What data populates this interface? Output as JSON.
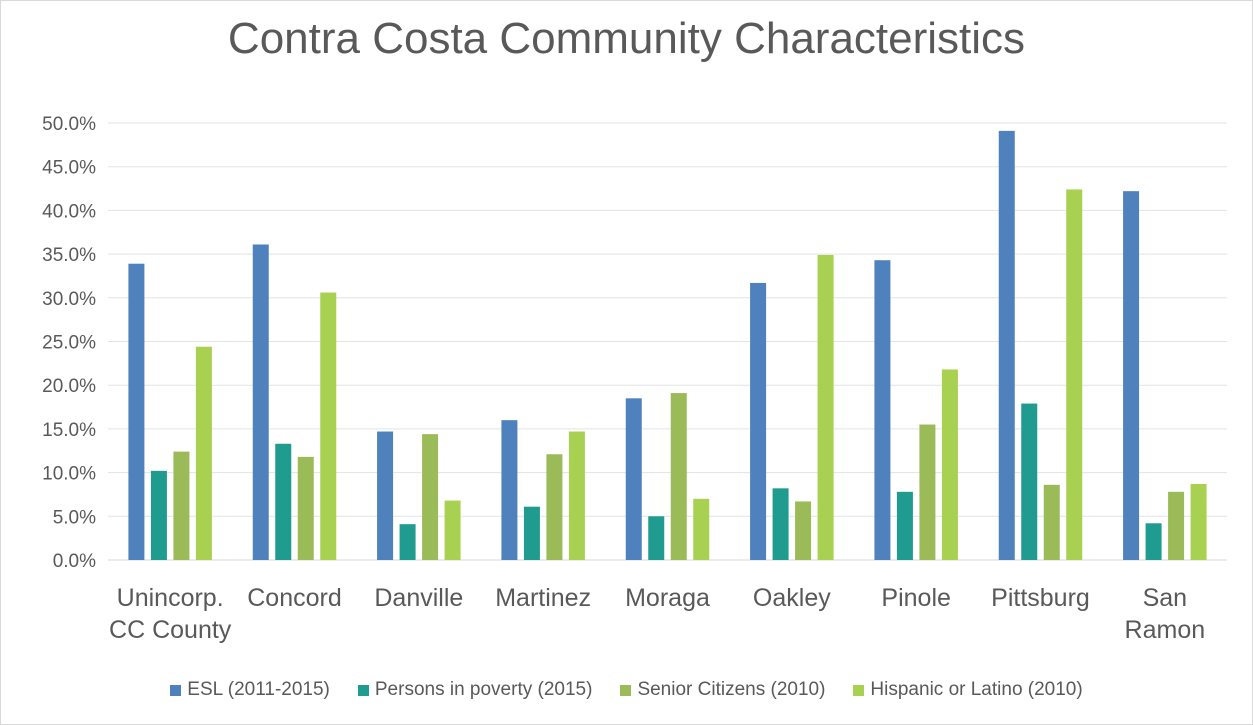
{
  "chart_data": {
    "type": "bar",
    "title": "Contra Costa Community Characteristics",
    "xlabel": "",
    "ylabel": "",
    "ylim": [
      0,
      50
    ],
    "ytick_step": 5,
    "ytick_format": "percent_1dp",
    "grid": true,
    "legend_position": "bottom",
    "categories": [
      [
        "Unincorp.",
        "CC County"
      ],
      [
        "Concord"
      ],
      [
        "Danville"
      ],
      [
        "Martinez"
      ],
      [
        "Moraga"
      ],
      [
        "Oakley"
      ],
      [
        "Pinole"
      ],
      [
        "Pittsburg"
      ],
      [
        "San",
        "Ramon"
      ]
    ],
    "series": [
      {
        "name": "ESL (2011-2015)",
        "color": "#4f81bd",
        "values": [
          33.9,
          36.1,
          14.7,
          16.0,
          18.5,
          31.7,
          34.3,
          49.1,
          42.2
        ]
      },
      {
        "name": "Persons in poverty (2015)",
        "color": "#1f9b8f",
        "values": [
          10.2,
          13.3,
          4.1,
          6.1,
          5.0,
          8.2,
          7.8,
          17.9,
          4.2
        ]
      },
      {
        "name": "Senior Citizens (2010)",
        "color": "#9bbb59",
        "values": [
          12.4,
          11.8,
          14.4,
          12.1,
          19.1,
          6.7,
          15.5,
          8.6,
          7.8
        ]
      },
      {
        "name": "Hispanic or Latino (2010)",
        "color": "#a9d151",
        "values": [
          24.4,
          30.6,
          6.8,
          14.7,
          7.0,
          34.9,
          21.8,
          42.4,
          8.7
        ]
      }
    ]
  }
}
